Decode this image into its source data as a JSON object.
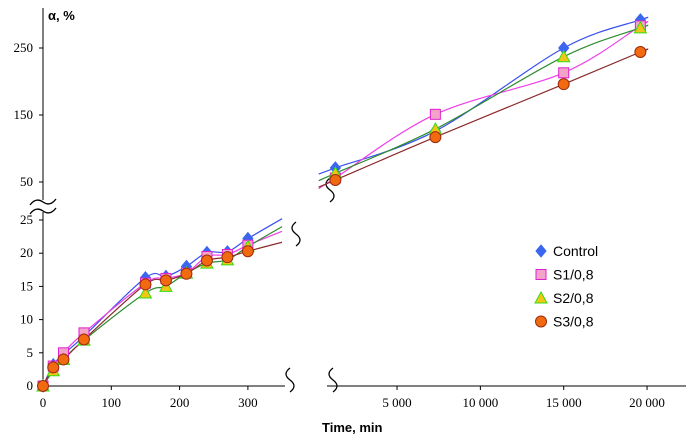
{
  "chart_data": {
    "type": "scatter",
    "ylabel": "α, %",
    "xlabel": "Time, min",
    "broken_axes": true,
    "trendlines": true,
    "legend_placement": "right-middle",
    "panels": {
      "lower_left": {
        "xlim": [
          0,
          350
        ],
        "ylim": [
          0,
          25
        ],
        "xticks": [
          "0",
          "100",
          "200",
          "300"
        ],
        "xtick_values": [
          0,
          100,
          200,
          300
        ],
        "yticks": [
          "0",
          "5",
          "10",
          "15",
          "20",
          "25"
        ],
        "ytick_values": [
          0,
          5,
          10,
          15,
          20,
          25
        ]
      },
      "upper_right": {
        "xlim": [
          0,
          20000
        ],
        "ylim": [
          40,
          300
        ],
        "xticks": [
          "5 000",
          "10 000",
          "15 000",
          "20 000"
        ],
        "xtick_values": [
          5000,
          10000,
          15000,
          20000
        ],
        "yticks": [
          "50",
          "150",
          "250"
        ],
        "ytick_values": [
          50,
          150,
          250
        ]
      }
    },
    "x_short": [
      0,
      15,
      30,
      60,
      150,
      180,
      210,
      240,
      270,
      300
    ],
    "x_long": [
      1300,
      7300,
      15000,
      19600
    ],
    "series": [
      {
        "name": "Control",
        "marker": "diamond",
        "color": "#3a66f0",
        "line_color": "#3a50f0",
        "edge": "#3a66f0",
        "short": [
          0,
          3.2,
          4.8,
          7.5,
          16.3,
          16.5,
          18.0,
          20.1,
          20.2,
          22.2
        ],
        "long": [
          71,
          126,
          250,
          292
        ]
      },
      {
        "name": "S1/0,8",
        "marker": "square",
        "color": "#f4a3c8",
        "line_color": "#ee3ee8",
        "edge": "#e020d0",
        "short": [
          0,
          3.0,
          5.0,
          8.0,
          15.5,
          16.2,
          17.0,
          19.5,
          19.8,
          21.2
        ],
        "long": [
          56,
          151,
          213,
          283
        ]
      },
      {
        "name": "S2/0,8",
        "marker": "triangle",
        "color": "#f2c617",
        "line_color": "#2e8b2e",
        "edge": "#33dd11",
        "short": [
          0,
          2.3,
          4.0,
          6.9,
          14.0,
          15.0,
          17.0,
          18.5,
          19.0,
          21.0
        ],
        "long": [
          63,
          129,
          237,
          280
        ]
      },
      {
        "name": "S3/0,8",
        "marker": "circle",
        "color": "#f26a10",
        "line_color": "#8b2a2a",
        "edge": "#9a2a10",
        "short": [
          0,
          2.8,
          4.0,
          7.0,
          15.3,
          15.9,
          16.9,
          18.9,
          19.4,
          20.3
        ],
        "long": [
          53,
          117,
          196,
          244
        ]
      }
    ]
  }
}
